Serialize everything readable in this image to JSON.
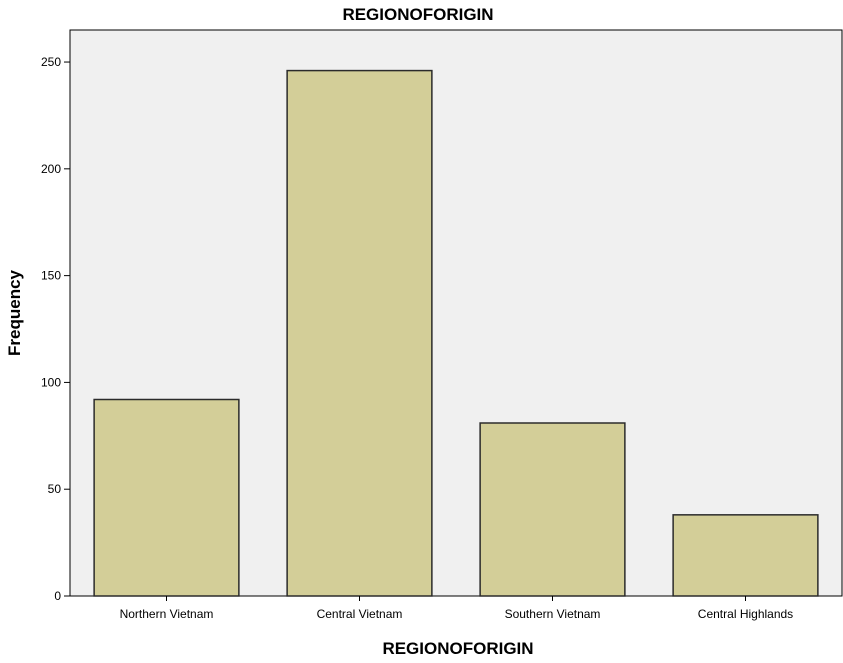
{
  "chart_data": {
    "type": "bar",
    "title": "REGIONOFORIGIN",
    "xlabel": "REGIONOFORIGIN",
    "ylabel": "Frequency",
    "categories": [
      "Northern Vietnam",
      "Central Vietnam",
      "Southern Vietnam",
      "Central Highlands"
    ],
    "values": [
      92,
      246,
      81,
      38
    ],
    "ylim": [
      0,
      265
    ],
    "yticks": [
      "0",
      "50",
      "100",
      "150",
      "200",
      "250"
    ],
    "grid": false,
    "legend": "none",
    "colors": {
      "bar_fill": "#d3ce98",
      "bar_stroke": "#2b2b2b",
      "plot_background": "#f0f0f0",
      "axis": "#000000"
    }
  }
}
